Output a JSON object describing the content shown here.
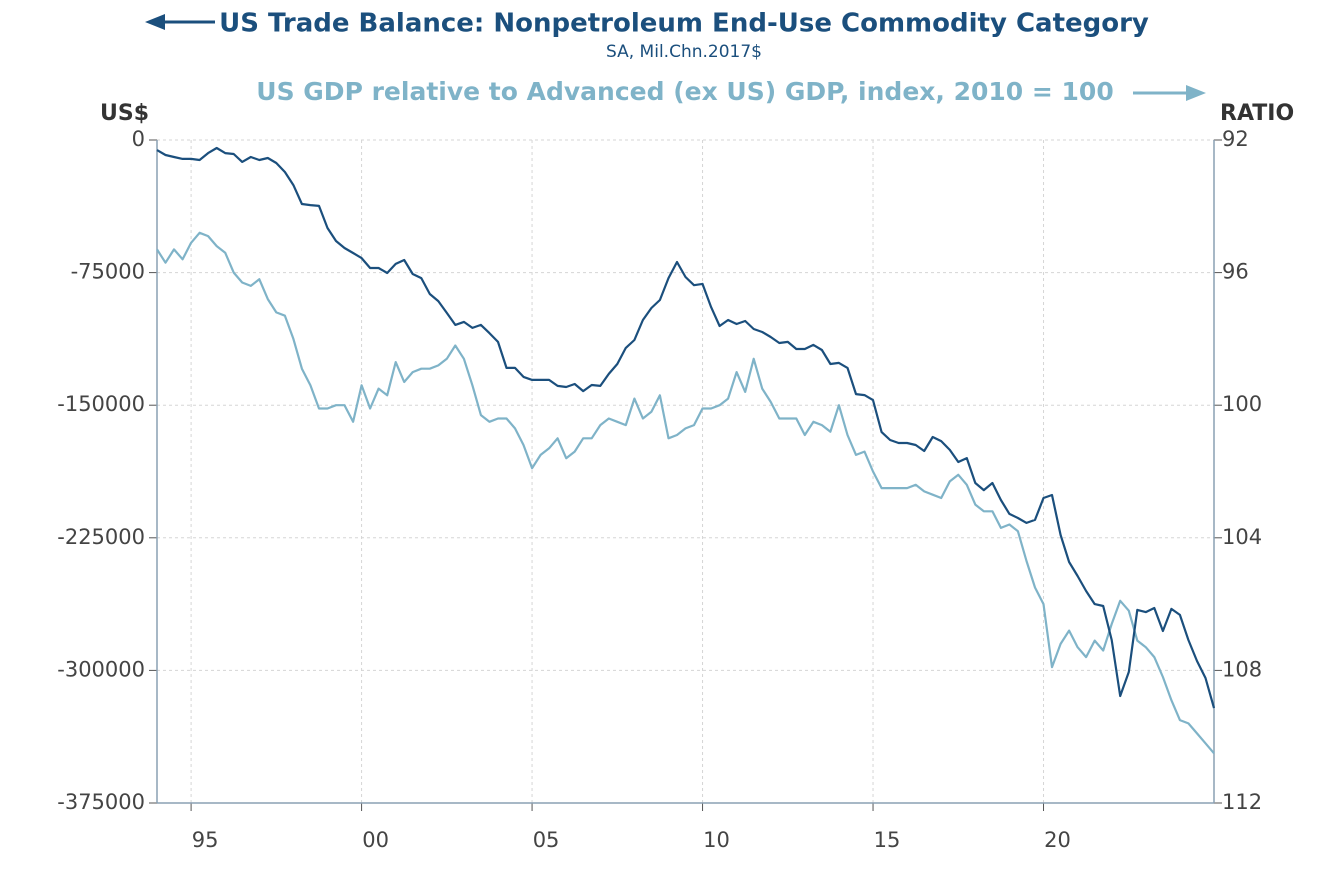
{
  "chart_data": {
    "type": "line",
    "title": "US Trade Balance: Nonpetroleum End-Use Commodity Category",
    "subtitle": "SA, Mil.Chn.2017$",
    "title2": "US GDP relative to Advanced (ex US) GDP, index, 2010 = 100",
    "ylabel": "US$",
    "y2label": "RATIO",
    "xlim": [
      1994,
      2025
    ],
    "xticks": [
      {
        "value": 1995,
        "label": "95"
      },
      {
        "value": 2000,
        "label": "00"
      },
      {
        "value": 2005,
        "label": "05"
      },
      {
        "value": 2010,
        "label": "10"
      },
      {
        "value": 2015,
        "label": "15"
      },
      {
        "value": 2020,
        "label": "20"
      }
    ],
    "ylim": [
      -375000,
      0
    ],
    "yticks": [
      0,
      -75000,
      -150000,
      -225000,
      -300000,
      -375000
    ],
    "y2lim": [
      112,
      92
    ],
    "y2ticks": [
      92,
      96,
      100,
      104,
      108,
      112
    ],
    "grid": true,
    "x": [
      1994,
      1994.25,
      1994.5,
      1994.75,
      1995,
      1995.25,
      1995.5,
      1995.75,
      1996,
      1996.25,
      1996.5,
      1996.75,
      1997,
      1997.25,
      1997.5,
      1997.75,
      1998,
      1998.25,
      1998.5,
      1998.75,
      1999,
      1999.25,
      1999.5,
      1999.75,
      2000,
      2000.25,
      2000.5,
      2000.75,
      2001,
      2001.25,
      2001.5,
      2001.75,
      2002,
      2002.25,
      2002.5,
      2002.75,
      2003,
      2003.25,
      2003.5,
      2003.75,
      2004,
      2004.25,
      2004.5,
      2004.75,
      2005,
      2005.25,
      2005.5,
      2005.75,
      2006,
      2006.25,
      2006.5,
      2006.75,
      2007,
      2007.25,
      2007.5,
      2007.75,
      2008,
      2008.25,
      2008.5,
      2008.75,
      2009,
      2009.25,
      2009.5,
      2009.75,
      2010,
      2010.25,
      2010.5,
      2010.75,
      2011,
      2011.25,
      2011.5,
      2011.75,
      2012,
      2012.25,
      2012.5,
      2012.75,
      2013,
      2013.25,
      2013.5,
      2013.75,
      2014,
      2014.25,
      2014.5,
      2014.75,
      2015,
      2015.25,
      2015.5,
      2015.75,
      2016,
      2016.25,
      2016.5,
      2016.75,
      2017,
      2017.25,
      2017.5,
      2017.75,
      2018,
      2018.25,
      2018.5,
      2018.75,
      2019,
      2019.25,
      2019.5,
      2019.75,
      2020,
      2020.25,
      2020.5,
      2020.75,
      2021,
      2021.25,
      2021.5,
      2021.75,
      2022,
      2022.25,
      2022.5,
      2022.75,
      2023,
      2023.25,
      2023.5,
      2023.75,
      2024,
      2024.25,
      2024.5,
      2024.75,
      2025
    ],
    "series": [
      {
        "name": "US Trade Balance: Nonpetroleum End-Use Commodity Category",
        "color": "#1b4f7d",
        "values": [
          -5700,
          -8500,
          -9600,
          -10700,
          -10700,
          -11300,
          -7400,
          -4500,
          -7400,
          -7900,
          -12400,
          -9600,
          -11300,
          -10200,
          -13000,
          -18100,
          -25500,
          -36200,
          -36800,
          -37300,
          -49800,
          -57100,
          -61100,
          -63900,
          -66800,
          -72400,
          -72400,
          -75200,
          -70100,
          -67900,
          -75800,
          -78100,
          -87100,
          -91100,
          -97800,
          -104600,
          -102900,
          -106300,
          -104600,
          -109200,
          -114200,
          -128900,
          -128900,
          -134000,
          -135700,
          -135700,
          -135700,
          -139100,
          -139700,
          -138000,
          -142000,
          -138600,
          -139100,
          -132300,
          -126700,
          -117600,
          -113100,
          -101800,
          -95000,
          -90500,
          -78100,
          -69000,
          -77500,
          -82100,
          -81400,
          -94500,
          -105200,
          -101800,
          -104100,
          -102400,
          -106900,
          -108600,
          -111400,
          -114800,
          -114200,
          -118200,
          -118200,
          -115900,
          -118800,
          -126700,
          -126100,
          -128900,
          -143700,
          -144300,
          -147100,
          -165200,
          -169700,
          -171400,
          -171400,
          -172500,
          -175900,
          -168000,
          -170300,
          -175300,
          -182100,
          -179900,
          -194000,
          -198000,
          -194000,
          -203600,
          -211500,
          -213800,
          -216600,
          -214900,
          -202500,
          -200800,
          -223400,
          -238700,
          -246600,
          -255100,
          -262500,
          -263600,
          -282800,
          -314500,
          -300900,
          -265800,
          -267000,
          -264700,
          -277700,
          -265200,
          -268600,
          -282800,
          -294700,
          -304300,
          -321300
        ]
      },
      {
        "name": "US GDP relative to Advanced (ex US) GDP, index, 2010 = 100",
        "color": "#7fb3c8",
        "axis": "y2",
        "values": [
          95.3,
          95.7,
          95.3,
          95.6,
          95.1,
          94.8,
          94.9,
          95.2,
          95.4,
          96.0,
          96.3,
          96.4,
          96.2,
          96.8,
          97.2,
          97.3,
          98.0,
          98.9,
          99.4,
          100.1,
          100.1,
          100.0,
          100.0,
          100.5,
          99.4,
          100.1,
          99.5,
          99.7,
          98.7,
          99.3,
          99.0,
          98.9,
          98.9,
          98.8,
          98.6,
          98.2,
          98.6,
          99.4,
          100.3,
          100.5,
          100.4,
          100.4,
          100.7,
          101.2,
          101.9,
          101.5,
          101.3,
          101.0,
          101.6,
          101.4,
          101.0,
          101.0,
          100.6,
          100.4,
          100.5,
          100.6,
          99.8,
          100.4,
          100.2,
          99.7,
          101.0,
          100.9,
          100.7,
          100.6,
          100.1,
          100.1,
          100.0,
          99.8,
          99.0,
          99.6,
          98.6,
          99.5,
          99.9,
          100.4,
          100.4,
          100.4,
          100.9,
          100.5,
          100.6,
          100.8,
          100.0,
          100.9,
          101.5,
          101.4,
          102.0,
          102.5,
          102.5,
          102.5,
          102.5,
          102.4,
          102.6,
          102.7,
          102.8,
          102.3,
          102.1,
          102.4,
          103.0,
          103.2,
          103.2,
          103.7,
          103.6,
          103.8,
          104.7,
          105.5,
          106.0,
          107.9,
          107.2,
          106.8,
          107.3,
          107.6,
          107.1,
          107.4,
          106.6,
          105.9,
          106.2,
          107.1,
          107.3,
          107.6,
          108.2,
          108.9,
          109.5,
          109.6,
          109.9,
          110.2,
          110.5
        ]
      }
    ]
  }
}
